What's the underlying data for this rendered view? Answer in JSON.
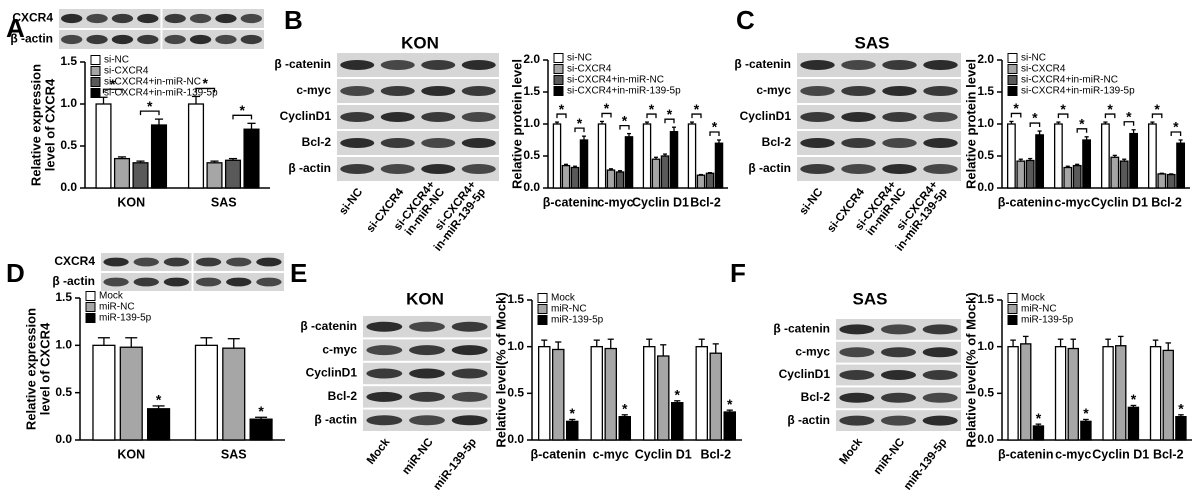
{
  "chart_data": [
    {
      "panel": "A",
      "type": "bar",
      "ylabel": [
        "Relative expression",
        "level of CXCR4"
      ],
      "categories": [
        "KON",
        "SAS"
      ],
      "series": [
        {
          "name": "si-NC",
          "color": "#ffffff",
          "values": [
            1.0,
            1.0
          ],
          "errors": [
            0.08,
            0.09
          ]
        },
        {
          "name": "si-CXCR4",
          "color": "#a6a6a6",
          "values": [
            0.35,
            0.3
          ],
          "errors": [
            0.02,
            0.02
          ]
        },
        {
          "name": "si-CXCR4+in-miR-NC",
          "color": "#595959",
          "values": [
            0.3,
            0.33
          ],
          "errors": [
            0.02,
            0.02
          ]
        },
        {
          "name": "si-CXCR4+in-miR-139-5p",
          "color": "#000000",
          "values": [
            0.75,
            0.7
          ],
          "errors": [
            0.07,
            0.07
          ]
        }
      ],
      "ylim": [
        0,
        1.5
      ],
      "yticks": [
        {
          "value": 0,
          "label": "0.0"
        },
        0.5,
        {
          "value": 1,
          "label": "1.0"
        },
        1.5
      ],
      "brackets": [
        {
          "between": [
            "si-NC",
            "si-CXCR4"
          ],
          "label": "*"
        },
        {
          "between": [
            "si-CXCR4+in-miR-NC",
            "si-CXCR4+in-miR-139-5p"
          ],
          "label": "*"
        }
      ]
    },
    {
      "panel": "B",
      "type": "bar",
      "title": "KON",
      "ylabel": [
        "Relative protein  level"
      ],
      "categories": [
        "β-catenin",
        "c-myc",
        "Cyclin D1",
        "Bcl-2"
      ],
      "series": [
        {
          "name": "si-NC",
          "color": "#ffffff",
          "values": [
            1.0,
            1.0,
            1.0,
            1.0
          ],
          "errors": [
            0.03,
            0.04,
            0.03,
            0.03
          ]
        },
        {
          "name": "si-CXCR4",
          "color": "#a6a6a6",
          "values": [
            0.35,
            0.28,
            0.45,
            0.2
          ],
          "errors": [
            0.02,
            0.02,
            0.03,
            0.01
          ]
        },
        {
          "name": "si-CXCR4+in-miR-NC",
          "color": "#595959",
          "values": [
            0.32,
            0.25,
            0.5,
            0.23
          ],
          "errors": [
            0.02,
            0.02,
            0.03,
            0.01
          ]
        },
        {
          "name": "si-CXCR4+in-miR-139-5p",
          "color": "#000000",
          "values": [
            0.75,
            0.8,
            0.88,
            0.7
          ],
          "errors": [
            0.06,
            0.05,
            0.07,
            0.05
          ]
        }
      ],
      "ylim": [
        0,
        2
      ],
      "yticks": [
        {
          "value": 0,
          "label": "0.0"
        },
        0.5,
        {
          "value": 1,
          "label": "1.0"
        },
        1.5,
        {
          "value": 2,
          "label": "2.0"
        }
      ],
      "brackets": [
        {
          "between": [
            "si-NC",
            "si-CXCR4"
          ],
          "label": "*"
        },
        {
          "between": [
            "si-CXCR4+in-miR-NC",
            "si-CXCR4+in-miR-139-5p"
          ],
          "label": "*"
        }
      ]
    },
    {
      "panel": "C",
      "type": "bar",
      "title": "SAS",
      "ylabel": [
        "Relative protein  level"
      ],
      "categories": [
        "β-catenin",
        "c-myc",
        "Cyclin D1",
        "Bcl-2"
      ],
      "series": [
        {
          "name": "si-NC",
          "color": "#ffffff",
          "values": [
            1.0,
            1.0,
            1.0,
            1.0
          ],
          "errors": [
            0.04,
            0.03,
            0.03,
            0.03
          ]
        },
        {
          "name": "si-CXCR4",
          "color": "#a6a6a6",
          "values": [
            0.42,
            0.32,
            0.48,
            0.22
          ],
          "errors": [
            0.03,
            0.02,
            0.03,
            0.01
          ]
        },
        {
          "name": "si-CXCR4+in-miR-NC",
          "color": "#595959",
          "values": [
            0.43,
            0.35,
            0.42,
            0.21
          ],
          "errors": [
            0.03,
            0.02,
            0.03,
            0.01
          ]
        },
        {
          "name": "si-CXCR4+in-miR-139-5p",
          "color": "#000000",
          "values": [
            0.83,
            0.75,
            0.85,
            0.7
          ],
          "errors": [
            0.06,
            0.05,
            0.06,
            0.05
          ]
        }
      ],
      "ylim": [
        0,
        2
      ],
      "yticks": [
        {
          "value": 0,
          "label": "0.0"
        },
        0.5,
        {
          "value": 1,
          "label": "1.0"
        },
        1.5,
        {
          "value": 2,
          "label": "2.0"
        }
      ],
      "brackets": [
        {
          "between": [
            "si-NC",
            "si-CXCR4"
          ],
          "label": "*"
        },
        {
          "between": [
            "si-CXCR4+in-miR-NC",
            "si-CXCR4+in-miR-139-5p"
          ],
          "label": "*"
        }
      ]
    },
    {
      "panel": "D",
      "type": "bar",
      "ylabel": [
        "Relative expression",
        "level of CXCR4"
      ],
      "categories": [
        "KON",
        "SAS"
      ],
      "series": [
        {
          "name": "Mock",
          "color": "#ffffff",
          "values": [
            1.0,
            1.0
          ],
          "errors": [
            0.08,
            0.08
          ]
        },
        {
          "name": "miR-NC",
          "color": "#a6a6a6",
          "values": [
            0.98,
            0.97
          ],
          "errors": [
            0.1,
            0.1
          ]
        },
        {
          "name": "miR-139-5p",
          "color": "#000000",
          "values": [
            0.33,
            0.22
          ],
          "errors": [
            0.03,
            0.02
          ],
          "labels": [
            "*",
            "*"
          ]
        }
      ],
      "ylim": [
        0,
        1.5
      ],
      "yticks": [
        {
          "value": 0,
          "label": "0.0"
        },
        0.5,
        {
          "value": 1,
          "label": "1.0"
        },
        1.5
      ]
    },
    {
      "panel": "E",
      "type": "bar",
      "title": "KON",
      "ylabel": [
        "Relative level(% of Mock)"
      ],
      "categories": [
        "β-catenin",
        "c-myc",
        "Cyclin D1",
        "Bcl-2"
      ],
      "series": [
        {
          "name": "Mock",
          "color": "#ffffff",
          "values": [
            1.0,
            1.0,
            1.0,
            1.0
          ],
          "errors": [
            0.07,
            0.07,
            0.08,
            0.08
          ]
        },
        {
          "name": "miR-NC",
          "color": "#a6a6a6",
          "values": [
            0.97,
            0.98,
            0.9,
            0.93
          ],
          "errors": [
            0.08,
            0.1,
            0.12,
            0.1
          ]
        },
        {
          "name": "miR-139-5p",
          "color": "#000000",
          "values": [
            0.2,
            0.25,
            0.4,
            0.3
          ],
          "errors": [
            0.02,
            0.02,
            0.02,
            0.02
          ],
          "labels": [
            "*",
            "*",
            "*",
            "*"
          ]
        }
      ],
      "ylim": [
        0,
        1.5
      ],
      "yticks": [
        {
          "value": 0,
          "label": "0.0"
        },
        0.5,
        {
          "value": 1,
          "label": "1.0"
        },
        1.5
      ]
    },
    {
      "panel": "F",
      "type": "bar",
      "title": "SAS",
      "ylabel": [
        "Relative level(% of Mock)"
      ],
      "categories": [
        "β-catenin",
        "c-myc",
        "Cyclin D1",
        "Bcl-2"
      ],
      "series": [
        {
          "name": "Mock",
          "color": "#ffffff",
          "values": [
            1.0,
            1.0,
            1.0,
            1.0
          ],
          "errors": [
            0.07,
            0.08,
            0.08,
            0.07
          ]
        },
        {
          "name": "miR-NC",
          "color": "#a6a6a6",
          "values": [
            1.03,
            0.98,
            1.01,
            0.96
          ],
          "errors": [
            0.08,
            0.1,
            0.1,
            0.08
          ]
        },
        {
          "name": "miR-139-5p",
          "color": "#000000",
          "values": [
            0.15,
            0.2,
            0.35,
            0.25
          ],
          "errors": [
            0.02,
            0.02,
            0.02,
            0.02
          ],
          "labels": [
            "*",
            "*",
            "*",
            "*"
          ]
        }
      ],
      "ylim": [
        0,
        1.5
      ],
      "yticks": [
        {
          "value": 0,
          "label": "0.0"
        },
        0.5,
        {
          "value": 1,
          "label": "1.0"
        },
        1.5
      ]
    }
  ],
  "blots": [
    {
      "rows": [
        "CXCR4",
        "β -actin"
      ]
    },
    {
      "rows": [
        "β -catenin",
        "c-myc",
        "CyclinD1",
        "Bcl-2",
        "β -actin"
      ],
      "lanes": [
        [
          "si-NC"
        ],
        [
          "si-CXCR4"
        ],
        [
          "si-CXCR4+",
          "in-miR-NC"
        ],
        [
          "si-CXCR4+",
          "in-miR-139-5p"
        ]
      ]
    },
    {
      "rows": [
        "β -catenin",
        "c-myc",
        "CyclinD1",
        "Bcl-2",
        "β -actin"
      ],
      "lanes": [
        [
          "si-NC"
        ],
        [
          "si-CXCR4"
        ],
        [
          "si-CXCR4+",
          "in-miR-NC"
        ],
        [
          "si-CXCR4+",
          "in-miR-139-5p"
        ]
      ]
    },
    {
      "rows": [
        "CXCR4",
        "β -actin"
      ]
    },
    {
      "rows": [
        "β -catenin",
        "c-myc",
        "CyclinD1",
        "Bcl-2",
        "β -actin"
      ],
      "lanes": [
        [
          "Mock"
        ],
        [
          "miR-NC"
        ],
        [
          "miR-139-5p"
        ]
      ]
    },
    {
      "rows": [
        "β -catenin",
        "c-myc",
        "CyclinD1",
        "Bcl-2",
        "β -actin"
      ],
      "lanes": [
        [
          "Mock"
        ],
        [
          "miR-NC"
        ],
        [
          "miR-139-5p"
        ]
      ]
    }
  ]
}
